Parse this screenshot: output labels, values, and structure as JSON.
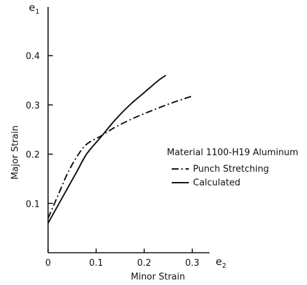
{
  "chart_data": {
    "type": "line",
    "xlabel": "Minor Strain",
    "ylabel": "Major Strain",
    "x_axis_symbol": "e",
    "x_axis_symbol_sub": "2",
    "y_axis_symbol": "e",
    "y_axis_symbol_sub": "1",
    "xlim": [
      0,
      0.32
    ],
    "ylim": [
      0,
      0.43
    ],
    "x_ticks": [
      {
        "value": 0,
        "label": "0"
      },
      {
        "value": 0.1,
        "label": "0.1"
      },
      {
        "value": 0.2,
        "label": "0.2"
      },
      {
        "value": 0.3,
        "label": "0.3"
      }
    ],
    "y_ticks": [
      {
        "value": 0.1,
        "label": "0.1"
      },
      {
        "value": 0.2,
        "label": "0.2"
      },
      {
        "value": 0.3,
        "label": "0.3"
      },
      {
        "value": 0.4,
        "label": "0.4"
      }
    ],
    "legend_title": "Material 1100-H19 Aluminum",
    "legend_position": "right",
    "grid": false,
    "series": [
      {
        "name": "Punch Stretching",
        "style": "dash-dot",
        "x": [
          0,
          0.02,
          0.04,
          0.06,
          0.08,
          0.11,
          0.14,
          0.18,
          0.22,
          0.26,
          0.3
        ],
        "y": [
          0.07,
          0.115,
          0.16,
          0.195,
          0.22,
          0.237,
          0.255,
          0.274,
          0.29,
          0.305,
          0.318
        ]
      },
      {
        "name": "Calculated",
        "style": "solid",
        "x": [
          0,
          0.02,
          0.04,
          0.06,
          0.08,
          0.11,
          0.14,
          0.17,
          0.2,
          0.23,
          0.245
        ],
        "y": [
          0.06,
          0.095,
          0.13,
          0.165,
          0.2,
          0.235,
          0.27,
          0.3,
          0.325,
          0.35,
          0.36
        ]
      }
    ]
  }
}
